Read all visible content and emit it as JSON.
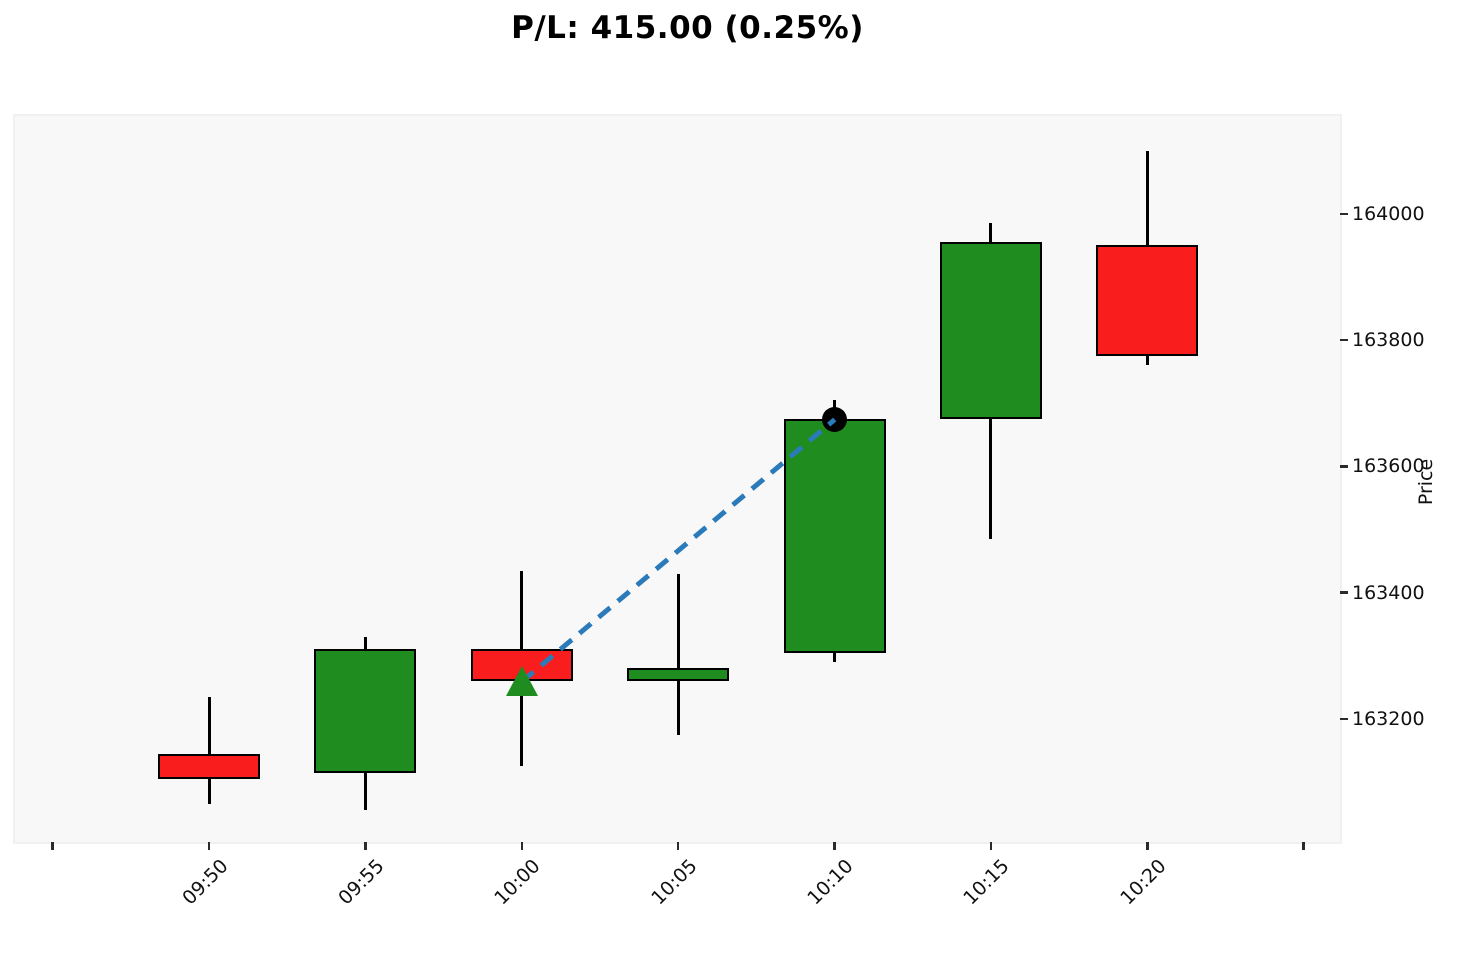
{
  "title": "P/L: 415.00 (0.25%)",
  "chart_data": {
    "type": "candlestick",
    "title": "P/L: 415.00 (0.25%)",
    "xlabel": "",
    "ylabel": "Price",
    "x_tick_labels": [
      "",
      "09:50",
      "09:55",
      "10:00",
      "10:05",
      "10:10",
      "10:15",
      "10:20",
      ""
    ],
    "y_ticks": [
      163200,
      163400,
      163600,
      163800,
      164000
    ],
    "ylim": [
      163005,
      164155
    ],
    "grid": false,
    "legend": "none",
    "candles": [
      {
        "time": "09:50",
        "open": 163145,
        "high": 163235,
        "low": 163065,
        "close": 163105,
        "direction": "down"
      },
      {
        "time": "09:55",
        "open": 163115,
        "high": 163330,
        "low": 163055,
        "close": 163310,
        "direction": "up"
      },
      {
        "time": "10:00",
        "open": 163310,
        "high": 163435,
        "low": 163125,
        "close": 163260,
        "direction": "down"
      },
      {
        "time": "10:05",
        "open": 163260,
        "high": 163430,
        "low": 163175,
        "close": 163280,
        "direction": "up"
      },
      {
        "time": "10:10",
        "open": 163305,
        "high": 163705,
        "low": 163290,
        "close": 163675,
        "direction": "up"
      },
      {
        "time": "10:15",
        "open": 163675,
        "high": 163985,
        "low": 163485,
        "close": 163955,
        "direction": "up"
      },
      {
        "time": "10:20",
        "open": 163950,
        "high": 164100,
        "low": 163760,
        "close": 163775,
        "direction": "down"
      }
    ],
    "trade": {
      "entry": {
        "time": "10:00",
        "price": 163260,
        "marker": "triangle-up",
        "color": "#1e8c1e"
      },
      "exit": {
        "time": "10:10",
        "price": 163675,
        "marker": "circle",
        "color": "#000000"
      },
      "connector": {
        "style": "dashed",
        "color": "#2b7bba"
      }
    },
    "colors": {
      "up": "#1e8c1e",
      "down": "#fa1d1d",
      "candle_edge": "#000000",
      "wick": "#000000",
      "plot_bg": "#f8f8f8",
      "figure_bg": "#ffffff",
      "tick_text": "#111111"
    }
  }
}
